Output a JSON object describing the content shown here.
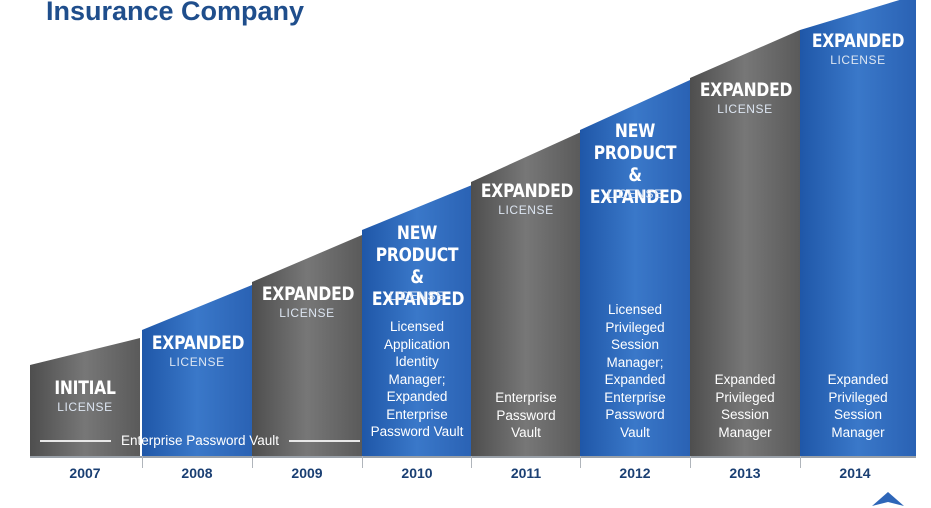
{
  "title": "Insurance Company",
  "colors": {
    "gray": "#6b6b6b",
    "blue": "#2e66b8",
    "title": "#1f4e8c",
    "year": "#1a3f73"
  },
  "steps": [
    {
      "year": "2007",
      "color": "gray",
      "headline": [
        "INITIAL"
      ],
      "sub": "LICENSE",
      "desc": []
    },
    {
      "year": "2008",
      "color": "blue",
      "headline": [
        "EXPANDED"
      ],
      "sub": "LICENSE",
      "desc": []
    },
    {
      "year": "2009",
      "color": "gray",
      "headline": [
        "EXPANDED"
      ],
      "sub": "LICENSE",
      "desc": []
    },
    {
      "year": "2010",
      "color": "blue",
      "headline": [
        "NEW",
        "PRODUCT &",
        "EXPANDED"
      ],
      "sub": "LICENSE",
      "desc": [
        "Licensed",
        "Application",
        "Identity",
        "Manager;",
        "Expanded",
        "Enterprise",
        "Password Vault"
      ]
    },
    {
      "year": "2011",
      "color": "gray",
      "headline": [
        "EXPANDED"
      ],
      "sub": "LICENSE",
      "desc": [
        "Enterprise",
        "Password",
        "Vault"
      ]
    },
    {
      "year": "2012",
      "color": "blue",
      "headline": [
        "NEW",
        "PRODUCT &",
        "EXPANDED"
      ],
      "sub": "LICENSE",
      "desc": [
        "Licensed",
        "Privileged",
        "Session",
        "Manager;",
        "Expanded",
        "Enterprise",
        "Password",
        "Vault"
      ]
    },
    {
      "year": "2013",
      "color": "gray",
      "headline": [
        "EXPANDED"
      ],
      "sub": "LICENSE",
      "desc": [
        "Expanded",
        "Privileged",
        "Session",
        "Manager"
      ]
    },
    {
      "year": "2014",
      "color": "blue",
      "headline": [
        "EXPANDED"
      ],
      "sub": "LICENSE",
      "desc": [
        "Expanded",
        "Privileged",
        "Session",
        "Manager"
      ]
    }
  ],
  "span_label": "Enterprise Password Vault"
}
